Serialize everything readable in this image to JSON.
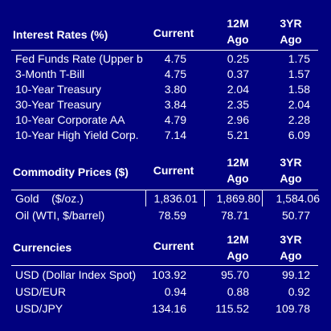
{
  "interest": {
    "title": "Interest Rates (%)",
    "col_current": "Current",
    "col_12m_top": "12M",
    "col_12m_bottom": "Ago",
    "col_3yr_top": "3YR",
    "col_3yr_bottom": "Ago",
    "rows": [
      {
        "label": "Fed Funds Rate (Upper b",
        "current": "4.75",
        "m12": "0.25",
        "yr3": "1.75"
      },
      {
        "label": "3-Month T-Bill",
        "current": "4.75",
        "m12": "0.37",
        "yr3": "1.57"
      },
      {
        "label": "10-Year Treasury",
        "current": "3.80",
        "m12": "2.04",
        "yr3": "1.58"
      },
      {
        "label": "30-Year Treasury",
        "current": "3.84",
        "m12": "2.35",
        "yr3": "2.04"
      },
      {
        "label": "10-Year Corporate AA",
        "current": "4.79",
        "m12": "2.96",
        "yr3": "2.28"
      },
      {
        "label": "10-Year High Yield Corp.",
        "current": "7.14",
        "m12": "5.21",
        "yr3": "6.09"
      }
    ]
  },
  "commodity": {
    "title": "Commodity Prices ($)",
    "col_current": "Current",
    "col_12m_top": "12M",
    "col_12m_bottom": "Ago",
    "col_3yr_top": "3YR",
    "col_3yr_bottom": "Ago",
    "rows": [
      {
        "label": "Gold    ($/oz.)",
        "current": "1,836.01",
        "m12": "1,869.80",
        "yr3": "1,584.06"
      },
      {
        "label": "Oil (WTI, $/barrel)",
        "current": "78.59",
        "m12": "78.71",
        "yr3": "50.77"
      }
    ]
  },
  "currencies": {
    "title": "Currencies",
    "col_current": "Current",
    "col_12m_top": "12M",
    "col_12m_bottom": "Ago",
    "col_3yr_top": "3YR",
    "col_3yr_bottom": "Ago",
    "rows": [
      {
        "label": "USD (Dollar Index Spot)",
        "current": "103.92",
        "m12": "95.70",
        "yr3": "99.12"
      },
      {
        "label": "USD/EUR",
        "current": "0.94",
        "m12": "0.88",
        "yr3": "0.92"
      },
      {
        "label": "USD/JPY",
        "current": "134.16",
        "m12": "115.52",
        "yr3": "109.78"
      }
    ]
  },
  "colors": {
    "background": "#01017f",
    "text": "#ffffff"
  }
}
